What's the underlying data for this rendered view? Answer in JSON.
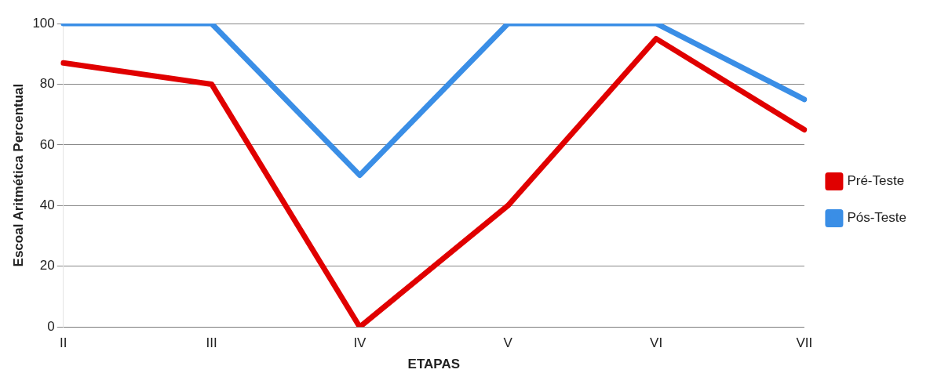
{
  "chart_data": {
    "type": "line",
    "xlabel": "ETAPAS",
    "ylabel": "Escoal Aritmética Percentual",
    "categories": [
      "II",
      "III",
      "IV",
      "V",
      "VI",
      "VII"
    ],
    "series": [
      {
        "name": "Pré-Teste",
        "color": "#e00000",
        "values": [
          87,
          80,
          0,
          40,
          95,
          65
        ]
      },
      {
        "name": "Pós-Teste",
        "color": "#3a8ee6",
        "values": [
          100,
          100,
          50,
          100,
          100,
          75
        ]
      }
    ],
    "ylim": [
      0,
      100
    ],
    "yticks": [
      0,
      20,
      40,
      60,
      80,
      100
    ],
    "grid": "y",
    "legend": "right",
    "marker": "none",
    "line_style": "solid"
  }
}
